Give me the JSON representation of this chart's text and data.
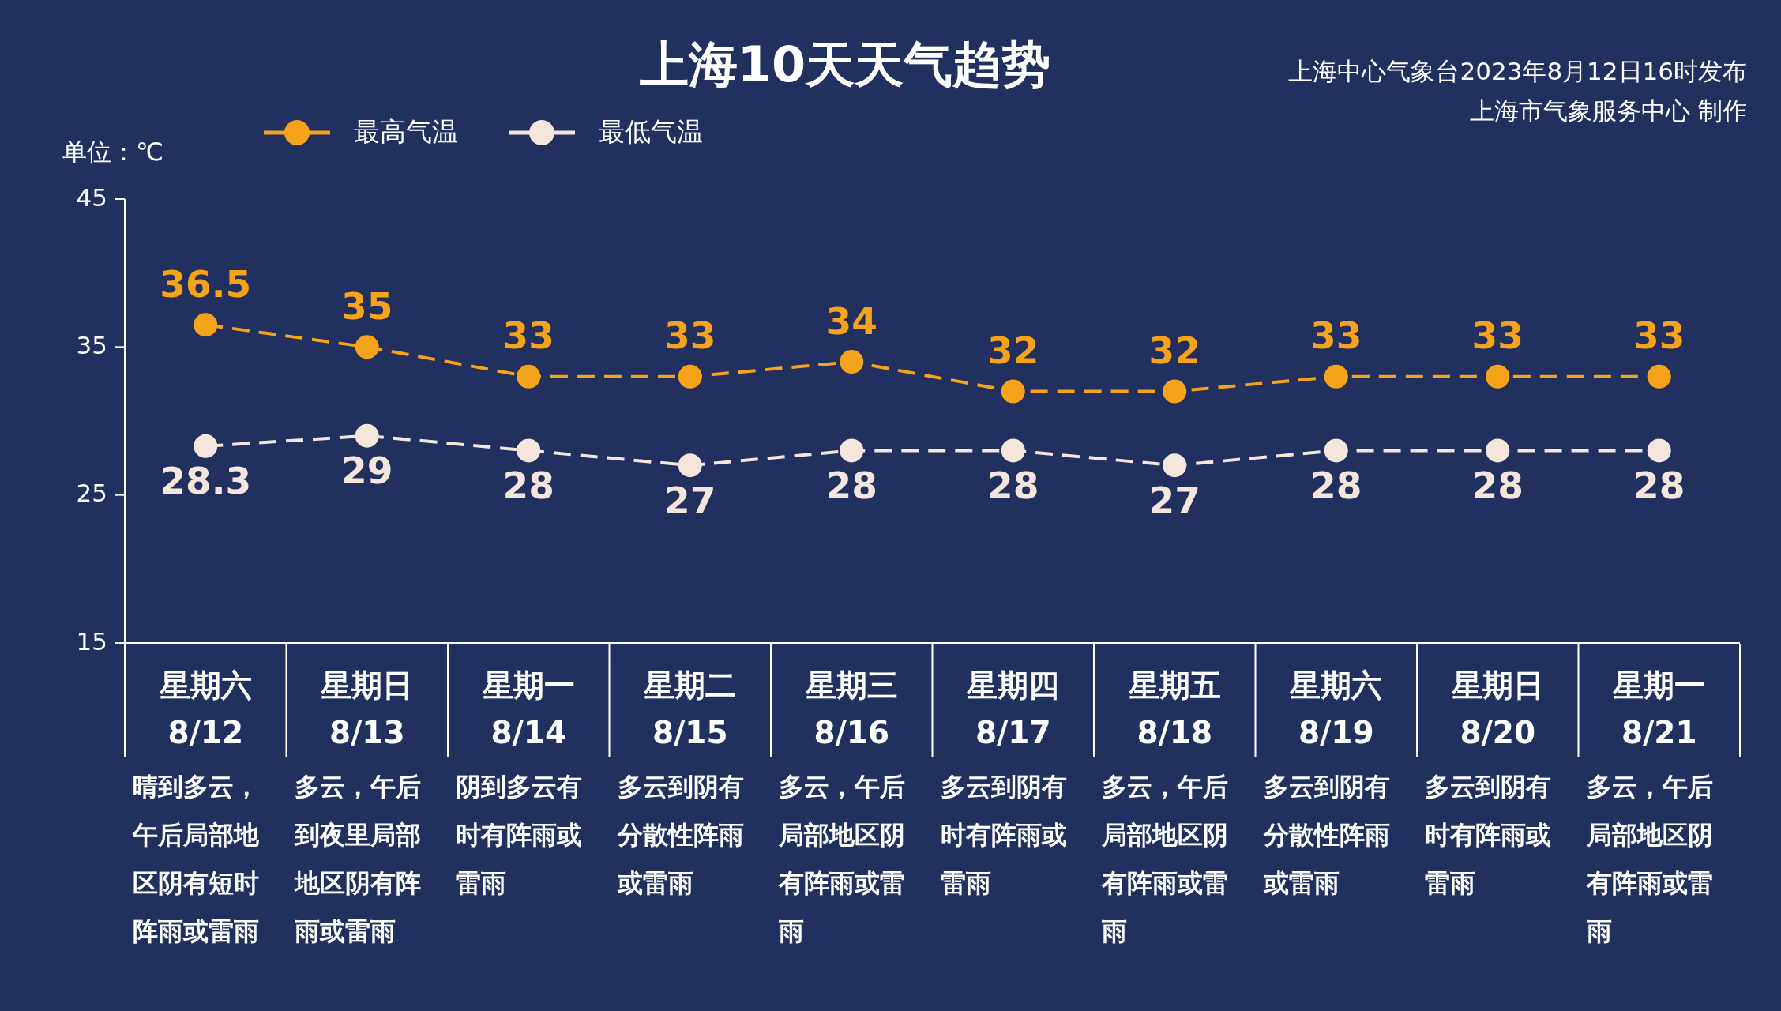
{
  "chart_data": {
    "type": "line",
    "title": "上海10天天气趋势",
    "ylabel": "单位：℃",
    "categories": [
      "星期六\n8/12",
      "星期日\n8/13",
      "星期一\n8/14",
      "星期二\n8/15",
      "星期三\n8/16",
      "星期四\n8/17",
      "星期五\n8/18",
      "星期六\n8/19",
      "星期日\n8/20",
      "星期一\n8/21"
    ],
    "series": [
      {
        "name": "最高气温",
        "color": "#f5a31a",
        "values": [
          36.5,
          35,
          33,
          33,
          34,
          32,
          32,
          33,
          33,
          33
        ]
      },
      {
        "name": "最低气温",
        "color": "#f4e6dc",
        "values": [
          28.3,
          29,
          28,
          27,
          28,
          28,
          27,
          28,
          28,
          28
        ]
      }
    ],
    "ylim": [
      15,
      45
    ],
    "yticks": [
      15,
      25,
      35,
      45
    ],
    "grid": false,
    "legend": "top left",
    "marker": "circle",
    "line_style": "dashed",
    "data_labels": true,
    "annotations": [
      "上海中心气象台2023年8月12日16时发布",
      "上海市气象服务中心 制作",
      "晴到多云，午后局部地区阴有短时阵雨或雷雨",
      "多云，午后到夜里局部地区阴有阵雨或雷雨",
      "阴到多云有时有阵雨或雷雨",
      "多云到阴有分散性阵雨或雷雨",
      "多云，午后局部地区阴有阵雨或雷雨",
      "多云到阴有时有阵雨或雷雨",
      "多云，午后局部地区阴有阵雨或雷雨",
      "多云到阴有分散性阵雨或雷雨",
      "多云到阴有时有阵雨或雷雨",
      "多云，午后局部地区阴有阵雨或雷雨"
    ]
  }
}
